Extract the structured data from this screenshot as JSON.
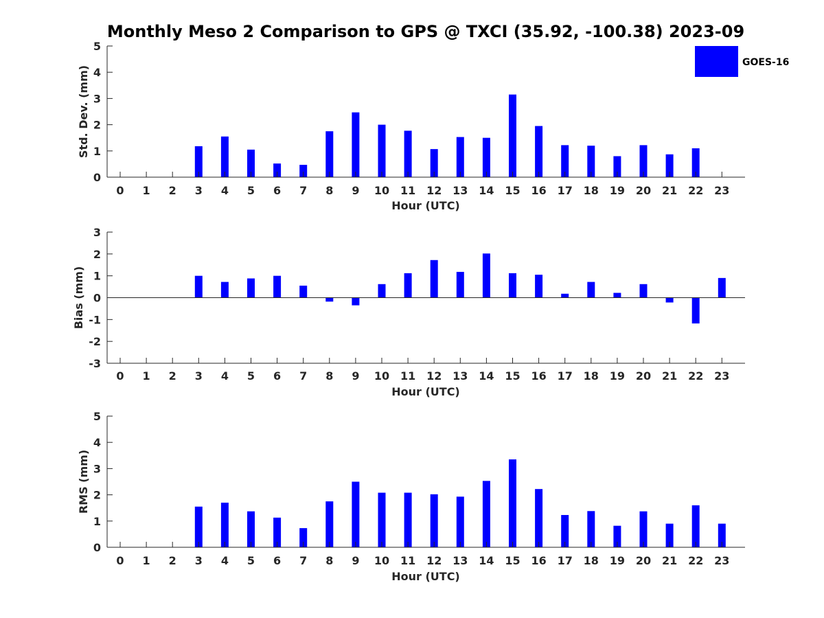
{
  "title": "Monthly Meso 2 Comparison to GPS @ TXCI (35.92, -100.38) 2023-09",
  "legend": {
    "label": "GOES-16",
    "color": "#0000ff"
  },
  "chart_data": [
    {
      "type": "bar",
      "xlabel": "Hour (UTC)",
      "ylabel": "Std. Dev. (mm)",
      "ylim": [
        0,
        5
      ],
      "yticks": [
        "0",
        "1",
        "2",
        "3",
        "4",
        "5"
      ],
      "categories": [
        "0",
        "1",
        "2",
        "3",
        "4",
        "5",
        "6",
        "7",
        "8",
        "9",
        "10",
        "11",
        "12",
        "13",
        "14",
        "15",
        "16",
        "17",
        "18",
        "19",
        "20",
        "21",
        "22",
        "23"
      ],
      "series": [
        {
          "name": "GOES-16",
          "values": [
            null,
            null,
            null,
            1.18,
            1.55,
            1.05,
            0.52,
            0.47,
            1.75,
            2.47,
            2.0,
            1.77,
            1.07,
            1.53,
            1.5,
            3.15,
            1.95,
            1.22,
            1.2,
            0.8,
            1.22,
            0.87,
            1.1,
            null
          ]
        }
      ],
      "legend_position": "top-right",
      "grid": false
    },
    {
      "type": "bar",
      "xlabel": "Hour (UTC)",
      "ylabel": "Bias (mm)",
      "ylim": [
        -3,
        3
      ],
      "yticks": [
        "-3",
        "-2",
        "-1",
        "0",
        "1",
        "2",
        "3"
      ],
      "categories": [
        "0",
        "1",
        "2",
        "3",
        "4",
        "5",
        "6",
        "7",
        "8",
        "9",
        "10",
        "11",
        "12",
        "13",
        "14",
        "15",
        "16",
        "17",
        "18",
        "19",
        "20",
        "21",
        "22",
        "23"
      ],
      "series": [
        {
          "name": "GOES-16",
          "values": [
            null,
            null,
            null,
            1.0,
            0.72,
            0.88,
            1.0,
            0.55,
            -0.18,
            -0.35,
            0.62,
            1.12,
            1.72,
            1.18,
            2.02,
            1.12,
            1.05,
            0.18,
            0.72,
            0.22,
            0.62,
            -0.22,
            -1.18,
            0.9
          ]
        }
      ],
      "grid": false
    },
    {
      "type": "bar",
      "xlabel": "Hour (UTC)",
      "ylabel": "RMS (mm)",
      "ylim": [
        0,
        5
      ],
      "yticks": [
        "0",
        "1",
        "2",
        "3",
        "4",
        "5"
      ],
      "categories": [
        "0",
        "1",
        "2",
        "3",
        "4",
        "5",
        "6",
        "7",
        "8",
        "9",
        "10",
        "11",
        "12",
        "13",
        "14",
        "15",
        "16",
        "17",
        "18",
        "19",
        "20",
        "21",
        "22",
        "23"
      ],
      "series": [
        {
          "name": "GOES-16",
          "values": [
            null,
            null,
            null,
            1.55,
            1.7,
            1.37,
            1.13,
            0.73,
            1.75,
            2.5,
            2.08,
            2.08,
            2.02,
            1.93,
            2.53,
            3.35,
            2.22,
            1.23,
            1.38,
            0.82,
            1.37,
            0.9,
            1.6,
            0.9
          ]
        }
      ],
      "grid": false
    }
  ]
}
